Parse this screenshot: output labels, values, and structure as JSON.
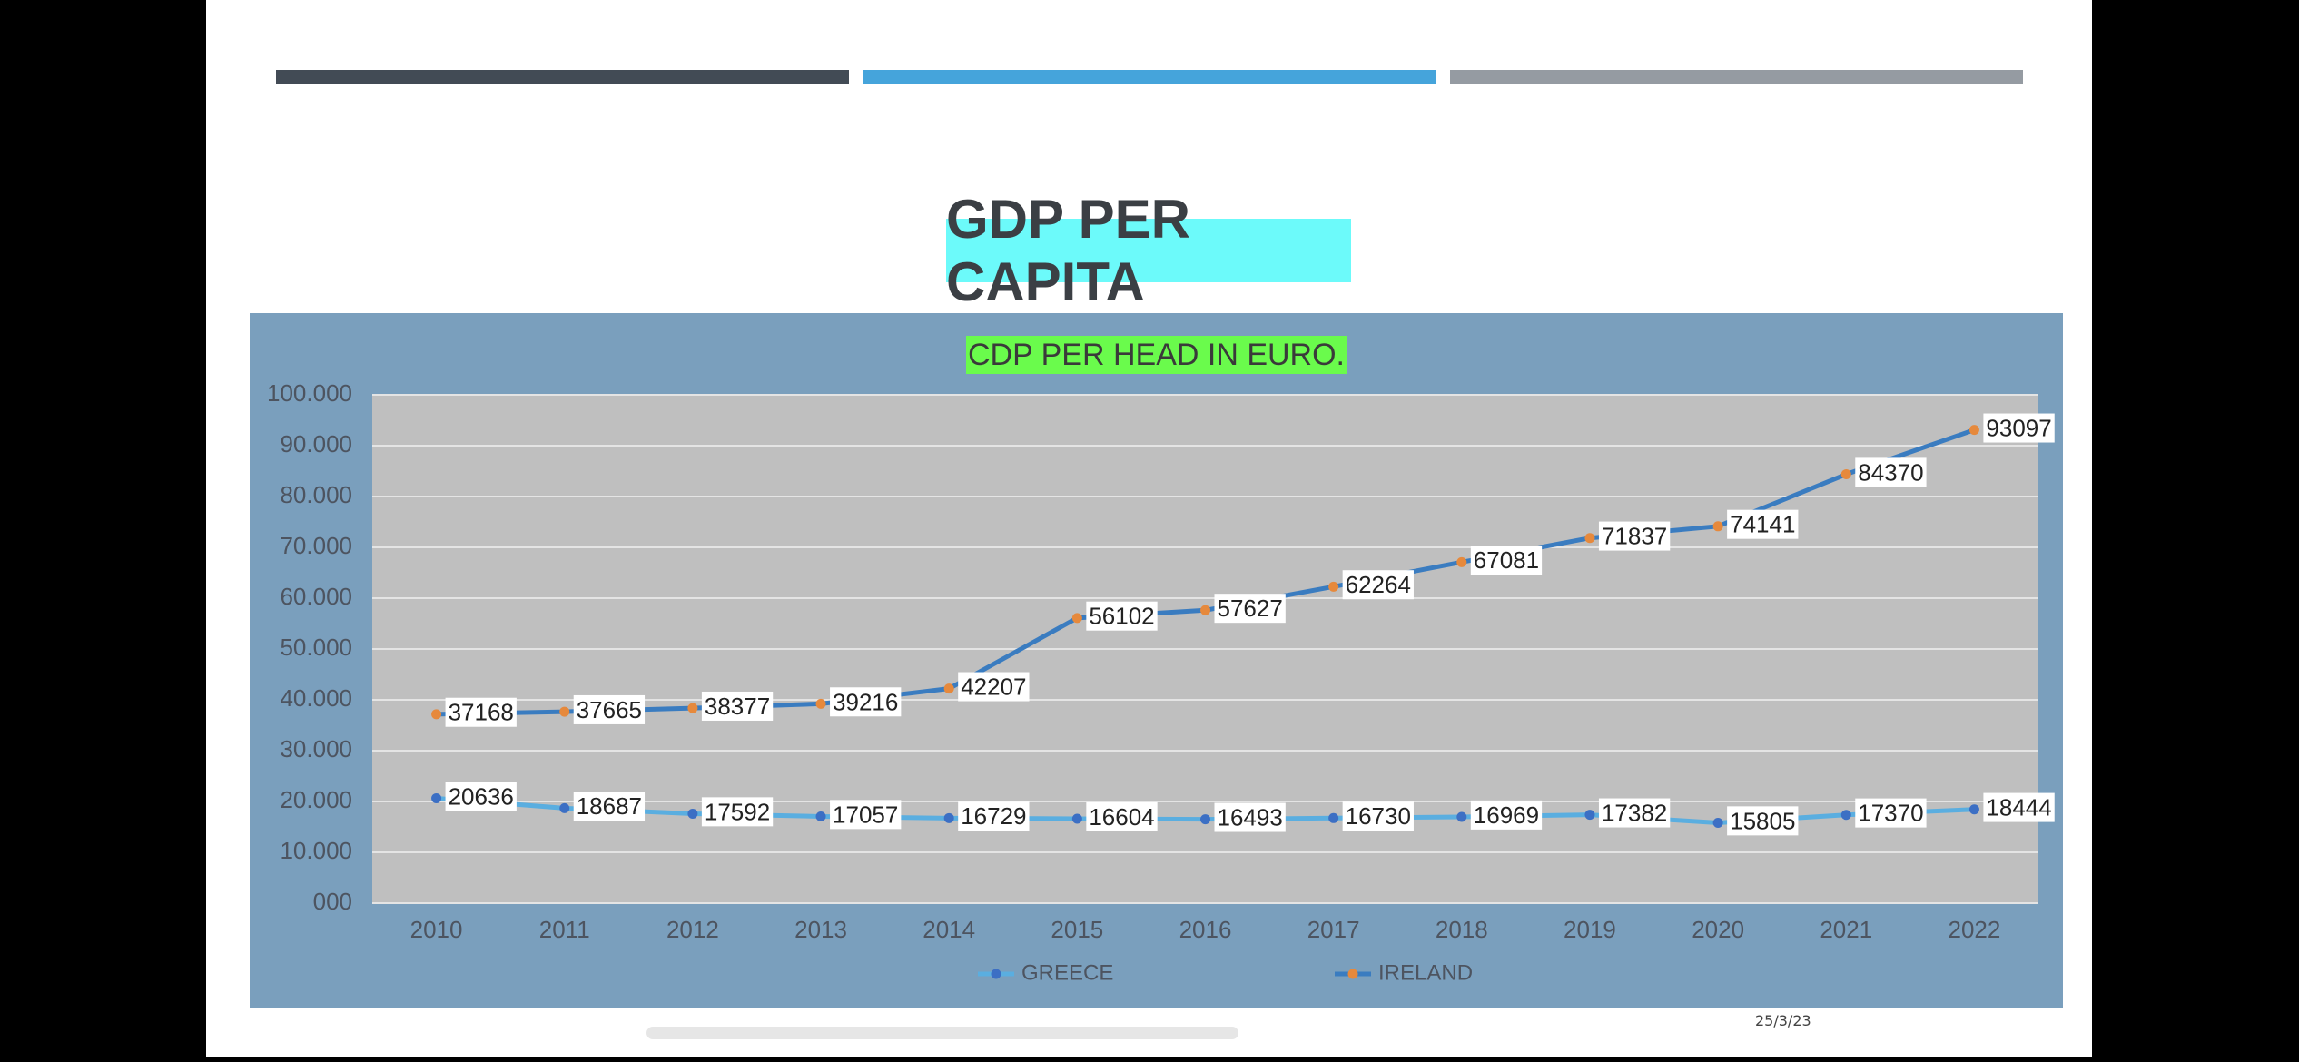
{
  "slide": {
    "title": "GDP PER CAPITA",
    "date": "25/3/23",
    "colors": {
      "bar1": "#424b55",
      "bar2": "#45a4db",
      "bar3": "#959ba2",
      "title_highlight": "#6cfafa",
      "chart_title_highlight": "#6afb4c",
      "chart_bg": "#7a9fbd",
      "plot_bg": "#bfbfbf"
    }
  },
  "chart_data": {
    "type": "line",
    "title": "CDP PER HEAD IN EURO.",
    "categories": [
      "2010",
      "2011",
      "2012",
      "2013",
      "2014",
      "2015",
      "2016",
      "2017",
      "2018",
      "2019",
      "2020",
      "2021",
      "2022"
    ],
    "ylim": [
      0,
      100000
    ],
    "yticks": [
      "000",
      "10.000",
      "20.000",
      "30.000",
      "40.000",
      "50.000",
      "60.000",
      "70.000",
      "80.000",
      "90.000",
      "100.000"
    ],
    "legend_position": "bottom",
    "grid": true,
    "series": [
      {
        "name": "GREECE",
        "values": [
          20636,
          18687,
          17592,
          17057,
          16729,
          16604,
          16493,
          16730,
          16969,
          17382,
          15805,
          17370,
          18444
        ],
        "line_color": "#5aaee0",
        "marker_color": "#3c6fc4"
      },
      {
        "name": "IRELAND",
        "values": [
          37168,
          37665,
          38377,
          39216,
          42207,
          56102,
          57627,
          62264,
          67081,
          71837,
          74141,
          84370,
          93097
        ],
        "line_color": "#3a7cc0",
        "marker_color": "#e6893c"
      }
    ]
  }
}
